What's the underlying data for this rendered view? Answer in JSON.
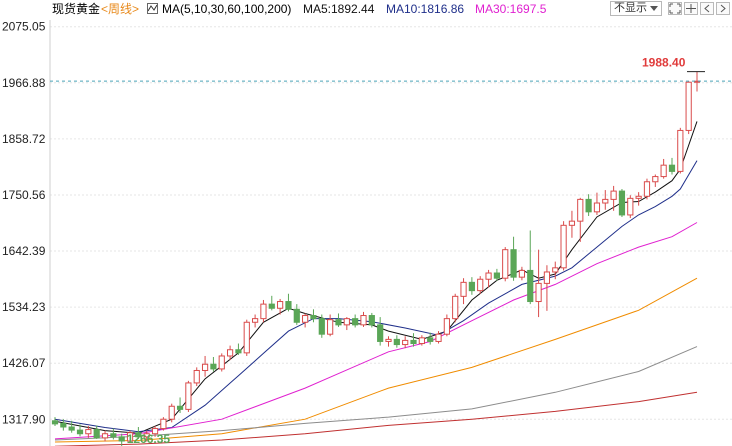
{
  "header": {
    "instrument": "现货黄金",
    "period": "<周线>",
    "ma_icon": "ma-indicator-icon",
    "ma_params": "MA(5,10,30,60,100,200)",
    "ma5": "MA5:1892.44",
    "ma10": "MA10:1816.86",
    "ma30": "MA30:1697.5",
    "display_select": "不显示",
    "toolbar_icons": [
      "expand-icon",
      "crosshair-icon",
      "chart-left-icon",
      "chart-right-icon"
    ]
  },
  "colors": {
    "up": "#d94b4b",
    "down": "#5aa657",
    "ma5": "#111111",
    "ma10": "#1f2f8a",
    "ma30": "#e020d0",
    "ma60": "#f08c00",
    "ma100": "#8c8c8c",
    "ma200": "#c03030",
    "last_price": "#e03b3b",
    "low_label": "#5aa657"
  },
  "chart_data": {
    "type": "candlestick",
    "ylim": [
      1266.35,
      2088
    ],
    "y_ticks": [
      "2075.05",
      "1966.88",
      "1858.72",
      "1750.56",
      "1642.39",
      "1534.23",
      "1426.07",
      "1317.90"
    ],
    "y_tick_values": [
      2075.05,
      1966.88,
      1858.72,
      1750.56,
      1642.39,
      1534.23,
      1426.07,
      1317.9
    ],
    "annotations": {
      "high_label": "1988.40",
      "high_value": 1988.4,
      "low_label": "1266.35",
      "low_value": 1266.35,
      "last_price_line": 1970
    },
    "candles": [
      [
        1315,
        1322,
        1305,
        1309
      ],
      [
        1310,
        1318,
        1296,
        1303
      ],
      [
        1303,
        1315,
        1292,
        1297
      ],
      [
        1297,
        1308,
        1285,
        1290
      ],
      [
        1290,
        1305,
        1282,
        1298
      ],
      [
        1298,
        1306,
        1280,
        1282
      ],
      [
        1282,
        1296,
        1275,
        1290
      ],
      [
        1290,
        1300,
        1279,
        1284
      ],
      [
        1284,
        1290,
        1266.35,
        1276
      ],
      [
        1276,
        1296,
        1272,
        1292
      ],
      [
        1292,
        1303,
        1280,
        1284
      ],
      [
        1284,
        1296,
        1275,
        1290
      ],
      [
        1290,
        1305,
        1284,
        1300
      ],
      [
        1300,
        1322,
        1296,
        1318
      ],
      [
        1318,
        1348,
        1312,
        1343
      ],
      [
        1343,
        1360,
        1330,
        1337
      ],
      [
        1337,
        1392,
        1332,
        1388
      ],
      [
        1388,
        1418,
        1382,
        1412
      ],
      [
        1412,
        1440,
        1400,
        1424
      ],
      [
        1424,
        1438,
        1410,
        1415
      ],
      [
        1415,
        1445,
        1410,
        1440
      ],
      [
        1440,
        1460,
        1432,
        1452
      ],
      [
        1452,
        1464,
        1442,
        1446
      ],
      [
        1446,
        1510,
        1440,
        1505
      ],
      [
        1505,
        1520,
        1495,
        1512
      ],
      [
        1512,
        1548,
        1505,
        1540
      ],
      [
        1540,
        1556,
        1528,
        1532
      ],
      [
        1532,
        1550,
        1520,
        1545
      ],
      [
        1545,
        1560,
        1526,
        1530
      ],
      [
        1530,
        1540,
        1500,
        1505
      ],
      [
        1505,
        1522,
        1495,
        1518
      ],
      [
        1518,
        1530,
        1505,
        1512
      ],
      [
        1512,
        1520,
        1475,
        1482
      ],
      [
        1482,
        1520,
        1478,
        1510
      ],
      [
        1510,
        1522,
        1496,
        1500
      ],
      [
        1500,
        1515,
        1490,
        1512
      ],
      [
        1512,
        1520,
        1495,
        1500
      ],
      [
        1500,
        1525,
        1496,
        1518
      ],
      [
        1518,
        1523,
        1495,
        1500
      ],
      [
        1500,
        1515,
        1460,
        1468
      ],
      [
        1468,
        1478,
        1458,
        1472
      ],
      [
        1472,
        1480,
        1456,
        1462
      ],
      [
        1462,
        1478,
        1455,
        1470
      ],
      [
        1470,
        1484,
        1458,
        1464
      ],
      [
        1464,
        1480,
        1460,
        1475
      ],
      [
        1475,
        1485,
        1462,
        1468
      ],
      [
        1468,
        1488,
        1464,
        1482
      ],
      [
        1482,
        1520,
        1478,
        1512
      ],
      [
        1512,
        1560,
        1505,
        1555
      ],
      [
        1555,
        1590,
        1540,
        1582
      ],
      [
        1582,
        1592,
        1558,
        1566
      ],
      [
        1566,
        1594,
        1560,
        1588
      ],
      [
        1588,
        1606,
        1572,
        1600
      ],
      [
        1600,
        1608,
        1585,
        1590
      ],
      [
        1590,
        1650,
        1584,
        1645
      ],
      [
        1645,
        1670,
        1585,
        1592
      ],
      [
        1592,
        1612,
        1586,
        1605
      ],
      [
        1605,
        1682,
        1540,
        1545
      ],
      [
        1545,
        1645,
        1515,
        1580
      ],
      [
        1580,
        1615,
        1527,
        1602
      ],
      [
        1602,
        1622,
        1588,
        1610
      ],
      [
        1610,
        1700,
        1605,
        1692
      ],
      [
        1692,
        1720,
        1668,
        1700
      ],
      [
        1700,
        1745,
        1660,
        1742
      ],
      [
        1742,
        1752,
        1710,
        1718
      ],
      [
        1718,
        1755,
        1712,
        1735
      ],
      [
        1735,
        1760,
        1722,
        1742
      ],
      [
        1742,
        1768,
        1720,
        1758
      ],
      [
        1758,
        1762,
        1708,
        1712
      ],
      [
        1712,
        1750,
        1706,
        1744
      ],
      [
        1744,
        1756,
        1730,
        1748
      ],
      [
        1748,
        1782,
        1742,
        1776
      ],
      [
        1776,
        1790,
        1766,
        1786
      ],
      [
        1786,
        1820,
        1782,
        1808
      ],
      [
        1808,
        1822,
        1790,
        1796
      ],
      [
        1796,
        1880,
        1792,
        1875
      ],
      [
        1875,
        1970,
        1868,
        1968
      ],
      [
        1968,
        1988.4,
        1950,
        1970
      ]
    ],
    "series": [
      {
        "name": "MA5",
        "points": [
          [
            0,
            1314
          ],
          [
            6,
            1296
          ],
          [
            10,
            1291
          ],
          [
            14,
            1318
          ],
          [
            18,
            1396
          ],
          [
            22,
            1446
          ],
          [
            25,
            1505
          ],
          [
            28,
            1532
          ],
          [
            30,
            1522
          ],
          [
            34,
            1505
          ],
          [
            38,
            1500
          ],
          [
            40,
            1488
          ],
          [
            44,
            1472
          ],
          [
            47,
            1488
          ],
          [
            50,
            1548
          ],
          [
            53,
            1586
          ],
          [
            56,
            1606
          ],
          [
            58,
            1590
          ],
          [
            60,
            1598
          ],
          [
            62,
            1645
          ],
          [
            65,
            1708
          ],
          [
            68,
            1736
          ],
          [
            70,
            1738
          ],
          [
            72,
            1756
          ],
          [
            74,
            1778
          ],
          [
            75,
            1800
          ],
          [
            77,
            1892.44
          ]
        ]
      },
      {
        "name": "MA10",
        "points": [
          [
            0,
            1318
          ],
          [
            6,
            1302
          ],
          [
            10,
            1294
          ],
          [
            14,
            1302
          ],
          [
            18,
            1345
          ],
          [
            22,
            1402
          ],
          [
            25,
            1445
          ],
          [
            28,
            1488
          ],
          [
            31,
            1512
          ],
          [
            34,
            1512
          ],
          [
            38,
            1506
          ],
          [
            42,
            1494
          ],
          [
            46,
            1480
          ],
          [
            49,
            1508
          ],
          [
            52,
            1542
          ],
          [
            56,
            1578
          ],
          [
            60,
            1594
          ],
          [
            62,
            1610
          ],
          [
            65,
            1650
          ],
          [
            68,
            1690
          ],
          [
            70,
            1712
          ],
          [
            72,
            1728
          ],
          [
            74,
            1748
          ],
          [
            75,
            1762
          ],
          [
            77,
            1816.86
          ]
        ]
      },
      {
        "name": "MA30",
        "points": [
          [
            0,
            1280
          ],
          [
            10,
            1290
          ],
          [
            20,
            1318
          ],
          [
            30,
            1378
          ],
          [
            40,
            1448
          ],
          [
            45,
            1468
          ],
          [
            50,
            1508
          ],
          [
            55,
            1548
          ],
          [
            60,
            1578
          ],
          [
            65,
            1618
          ],
          [
            70,
            1650
          ],
          [
            74,
            1670
          ],
          [
            77,
            1697.5
          ]
        ]
      },
      {
        "name": "MA60",
        "points": [
          [
            0,
            1274
          ],
          [
            10,
            1277
          ],
          [
            20,
            1290
          ],
          [
            30,
            1318
          ],
          [
            40,
            1378
          ],
          [
            50,
            1418
          ],
          [
            60,
            1472
          ],
          [
            70,
            1528
          ],
          [
            77,
            1590
          ]
        ]
      },
      {
        "name": "MA100",
        "points": [
          [
            0,
            1278
          ],
          [
            10,
            1285
          ],
          [
            20,
            1296
          ],
          [
            30,
            1310
          ],
          [
            40,
            1322
          ],
          [
            50,
            1338
          ],
          [
            60,
            1370
          ],
          [
            70,
            1410
          ],
          [
            77,
            1458
          ]
        ]
      },
      {
        "name": "MA200",
        "points": [
          [
            0,
            1266
          ],
          [
            10,
            1270
          ],
          [
            20,
            1278
          ],
          [
            30,
            1290
          ],
          [
            40,
            1306
          ],
          [
            50,
            1318
          ],
          [
            60,
            1333
          ],
          [
            70,
            1352
          ],
          [
            77,
            1370
          ]
        ]
      }
    ]
  }
}
